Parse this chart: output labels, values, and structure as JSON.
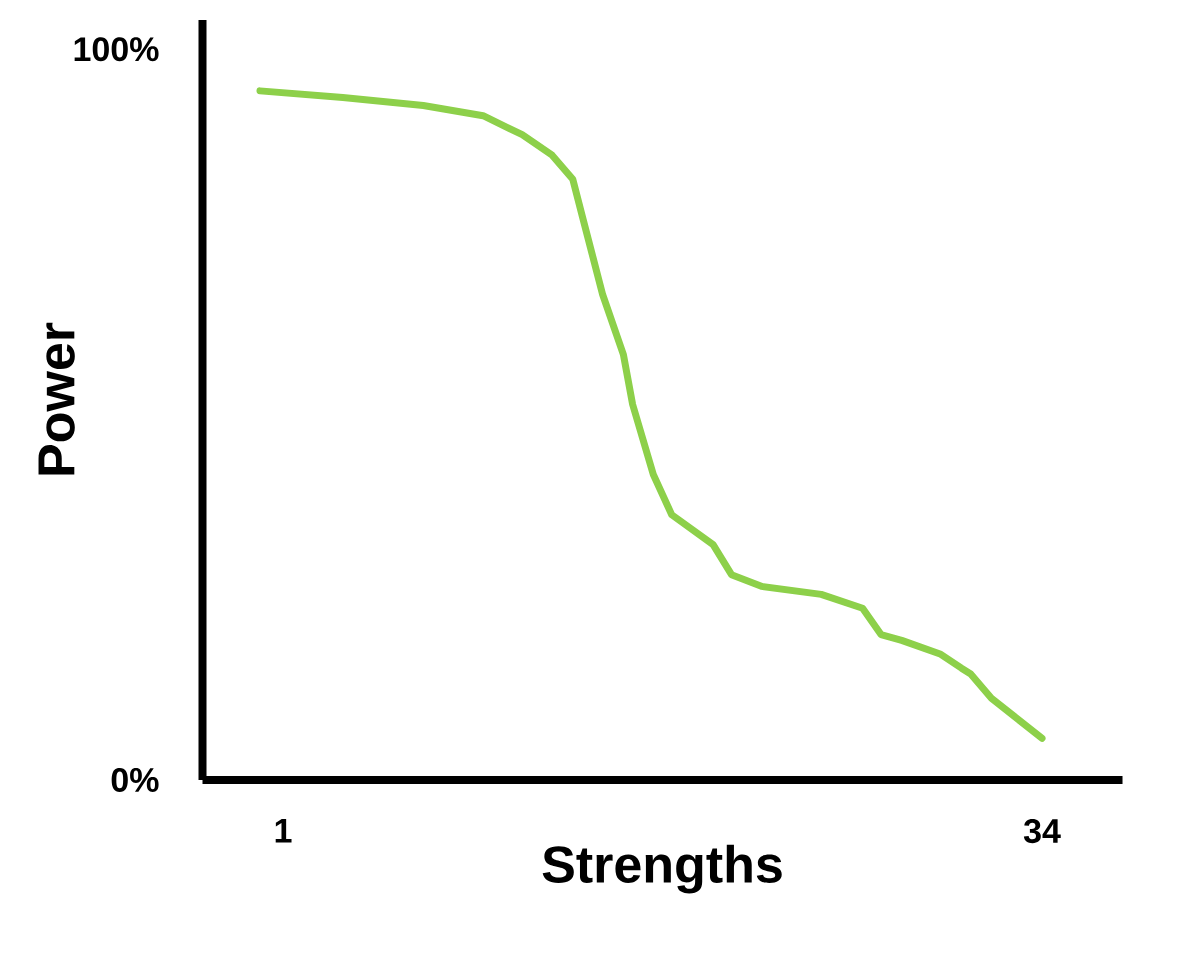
{
  "chart_data": {
    "type": "line",
    "xlabel": "Strengths",
    "ylabel": "Power",
    "x": [
      0.0,
      3.6,
      7.1,
      9.7,
      11.4,
      12.7,
      13.6,
      14.0,
      14.9,
      15.8,
      16.2,
      17.1,
      17.9,
      19.7,
      20.5,
      21.8,
      24.4,
      26.2,
      27.0,
      27.9,
      29.6,
      30.5,
      30.9,
      31.8,
      34.0
    ],
    "series": [
      {
        "color": "#8dd04a",
        "values": [
          94.3,
          93.4,
          92.3,
          90.9,
          88.3,
          85.5,
          82.2,
          77.3,
          66.4,
          58.2,
          51.4,
          41.8,
          36.3,
          32.2,
          28.1,
          26.5,
          25.4,
          23.5,
          19.9,
          19.1,
          17.2,
          15.3,
          14.5,
          11.2,
          5.7
        ]
      }
    ],
    "xlim": [
      -2.5,
      37.5
    ],
    "ylim": [
      0,
      104
    ],
    "xticks": [
      1,
      34
    ],
    "yticks": [
      {
        "value": 0,
        "label": "0%"
      },
      {
        "value": 100,
        "label": "100%"
      }
    ],
    "grid": false,
    "legend": false,
    "marker": "none",
    "line_style": "solid"
  }
}
